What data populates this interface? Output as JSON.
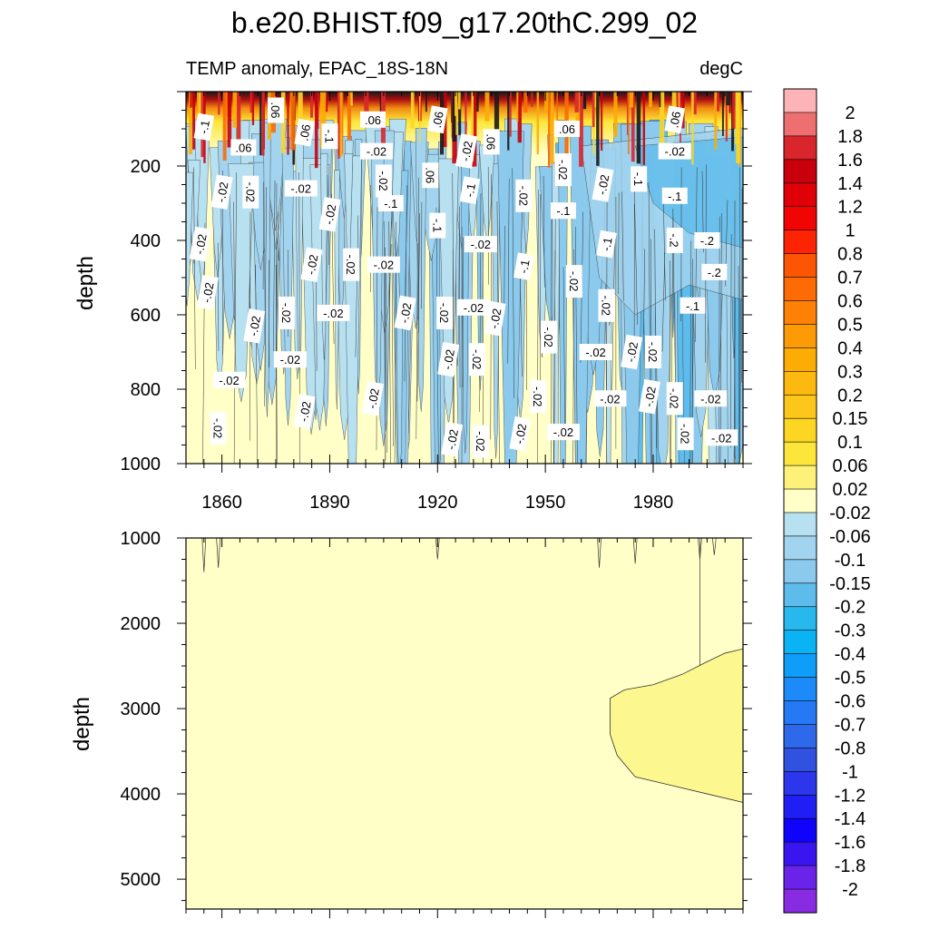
{
  "title": "b.e20.BHIST.f09_g17.20thC.299_02",
  "subtitle_left": "TEMP anomaly, EPAC_18S-18N",
  "subtitle_right": "degC",
  "chart_data": [
    {
      "type": "heatmap",
      "panel": "upper",
      "ylabel": "depth",
      "xlim": [
        1850,
        2005
      ],
      "ylim": [
        1000,
        0
      ],
      "yreverse": true,
      "x_ticks": [
        1860,
        1890,
        1920,
        1950,
        1980
      ],
      "y_ticks": [
        200,
        400,
        600,
        800,
        1000
      ],
      "contour_labels": [
        {
          "text": "-.1",
          "x": 1855,
          "y": 95
        },
        {
          "text": ".06",
          "x": 1875,
          "y": 50
        },
        {
          "text": ".06",
          "x": 1866,
          "y": 150
        },
        {
          "text": ".06",
          "x": 1883,
          "y": 110
        },
        {
          "text": "-.1",
          "x": 1890,
          "y": 120
        },
        {
          "text": ".06",
          "x": 1902,
          "y": 75
        },
        {
          "text": ".06",
          "x": 1920,
          "y": 75
        },
        {
          "text": ".06",
          "x": 1935,
          "y": 135
        },
        {
          "text": ".06",
          "x": 1956,
          "y": 100
        },
        {
          "text": ".06",
          "x": 1986,
          "y": 75
        },
        {
          "text": ".06",
          "x": 1918,
          "y": 225
        },
        {
          "text": "-.02",
          "x": 1903,
          "y": 160
        },
        {
          "text": "-.02",
          "x": 1928,
          "y": 160
        },
        {
          "text": "-.02",
          "x": 1955,
          "y": 210
        },
        {
          "text": "-.02",
          "x": 1986,
          "y": 160
        },
        {
          "text": "-.02",
          "x": 1860,
          "y": 270
        },
        {
          "text": "-.02",
          "x": 1868,
          "y": 270
        },
        {
          "text": "-.02",
          "x": 1882,
          "y": 260
        },
        {
          "text": "-.02",
          "x": 1890,
          "y": 330
        },
        {
          "text": "-.02",
          "x": 1905,
          "y": 240
        },
        {
          "text": "-.1",
          "x": 1907,
          "y": 300
        },
        {
          "text": "-.1",
          "x": 1929,
          "y": 265
        },
        {
          "text": "-.02",
          "x": 1944,
          "y": 280
        },
        {
          "text": "-.1",
          "x": 1955,
          "y": 320
        },
        {
          "text": "-.02",
          "x": 1966,
          "y": 250
        },
        {
          "text": "-.1",
          "x": 1976,
          "y": 235
        },
        {
          "text": "-.1",
          "x": 1986,
          "y": 280
        },
        {
          "text": "-.02",
          "x": 1854,
          "y": 410
        },
        {
          "text": "-.1",
          "x": 1920,
          "y": 360
        },
        {
          "text": "-.02",
          "x": 1932,
          "y": 410
        },
        {
          "text": "-.1",
          "x": 1967,
          "y": 410
        },
        {
          "text": "-.2",
          "x": 1986,
          "y": 400
        },
        {
          "text": "-.2",
          "x": 1995,
          "y": 400
        },
        {
          "text": "-.02",
          "x": 1885,
          "y": 465
        },
        {
          "text": "-.02",
          "x": 1896,
          "y": 465
        },
        {
          "text": "-.02",
          "x": 1905,
          "y": 465
        },
        {
          "text": "-.1",
          "x": 1944,
          "y": 470
        },
        {
          "text": "-.02",
          "x": 1958,
          "y": 510
        },
        {
          "text": "-.2",
          "x": 1997,
          "y": 485
        },
        {
          "text": "-.02",
          "x": 1856,
          "y": 540
        },
        {
          "text": "-.02",
          "x": 1878,
          "y": 595
        },
        {
          "text": "-.02",
          "x": 1891,
          "y": 595
        },
        {
          "text": "-.02",
          "x": 1911,
          "y": 595
        },
        {
          "text": "-.02",
          "x": 1922,
          "y": 595
        },
        {
          "text": "-.02",
          "x": 1930,
          "y": 580
        },
        {
          "text": "-.02",
          "x": 1936,
          "y": 610
        },
        {
          "text": "-.02",
          "x": 1967,
          "y": 575
        },
        {
          "text": "-.1",
          "x": 1991,
          "y": 575
        },
        {
          "text": "-.02",
          "x": 1869,
          "y": 630
        },
        {
          "text": "-.02",
          "x": 1951,
          "y": 660
        },
        {
          "text": "-.02",
          "x": 1964,
          "y": 700
        },
        {
          "text": "-.02",
          "x": 1974,
          "y": 700
        },
        {
          "text": "-.02",
          "x": 1980,
          "y": 700
        },
        {
          "text": "-.02",
          "x": 1879,
          "y": 720
        },
        {
          "text": "-.02",
          "x": 1923,
          "y": 720
        },
        {
          "text": "-.02",
          "x": 1931,
          "y": 720
        },
        {
          "text": "-.02",
          "x": 1862,
          "y": 775
        },
        {
          "text": "-.02",
          "x": 1902,
          "y": 825
        },
        {
          "text": "-.02",
          "x": 1948,
          "y": 820
        },
        {
          "text": "-.02",
          "x": 1968,
          "y": 825
        },
        {
          "text": "-.02",
          "x": 1979,
          "y": 820
        },
        {
          "text": "-.02",
          "x": 1986,
          "y": 825
        },
        {
          "text": "-.02",
          "x": 1996,
          "y": 825
        },
        {
          "text": "-.02",
          "x": 1883,
          "y": 860
        },
        {
          "text": "-.02",
          "x": 1859,
          "y": 905
        },
        {
          "text": "-.02",
          "x": 1955,
          "y": 915
        },
        {
          "text": "-.02",
          "x": 1943,
          "y": 920
        },
        {
          "text": "-.02",
          "x": 1989,
          "y": 920
        },
        {
          "text": "-.02",
          "x": 1999,
          "y": 930
        },
        {
          "text": "-.02",
          "x": 1924,
          "y": 935
        },
        {
          "text": "-.02",
          "x": 1932,
          "y": 940
        }
      ]
    },
    {
      "type": "heatmap",
      "panel": "lower",
      "ylabel": "depth",
      "xlim": [
        1850,
        2005
      ],
      "ylim": [
        5350,
        1000
      ],
      "yreverse": true,
      "y_ticks": [
        1000,
        2000,
        3000,
        4000,
        5000
      ]
    }
  ],
  "colorbar": {
    "levels": [
      "2",
      "1.8",
      "1.6",
      "1.4",
      "1.2",
      "1",
      "0.8",
      "0.7",
      "0.6",
      "0.5",
      "0.4",
      "0.3",
      "0.2",
      "0.15",
      "0.1",
      "0.06",
      "0.02",
      "-0.02",
      "-0.06",
      "-0.1",
      "-0.15",
      "-0.2",
      "-0.3",
      "-0.4",
      "-0.5",
      "-0.6",
      "-0.7",
      "-0.8",
      "-1",
      "-1.2",
      "-1.4",
      "-1.6",
      "-1.8",
      "-2"
    ],
    "colors": [
      "#fdb4b8",
      "#ee6f6f",
      "#d8262c",
      "#c7000c",
      "#df0008",
      "#f10404",
      "#fd2404",
      "#fc5504",
      "#fc6b04",
      "#fc8104",
      "#fc9b05",
      "#fdac05",
      "#fdb90f",
      "#fdc61a",
      "#fdd624",
      "#fde63a",
      "#fdf17a",
      "#ffffc7",
      "#b7e0f1",
      "#a2d4ef",
      "#8bcaed",
      "#5ebcec",
      "#27b8ee",
      "#09b3f4",
      "#0e9ef9",
      "#1c8bf9",
      "#2679f4",
      "#2e69ea",
      "#3152e0",
      "#2c36ea",
      "#1f1ff3",
      "#0f03fb",
      "#3a15ef",
      "#6a23e9",
      "#8a2be4"
    ]
  }
}
